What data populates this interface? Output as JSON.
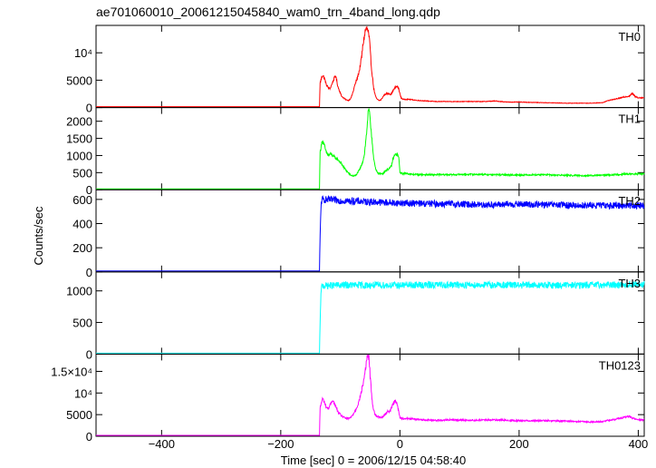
{
  "chart_data": {
    "type": "line",
    "title": "ae701060010_20061215045840_wam0_trn_4band_long.qdp",
    "xlabel": "Time [sec] 0 = 2006/12/15 04:58:40",
    "ylabel": "Counts/sec",
    "xlim": [
      -510,
      410
    ],
    "x_ticks": [
      -400,
      -200,
      0,
      200,
      400
    ],
    "x_tick_labels": [
      "−400",
      "−200",
      "0",
      "200",
      "400"
    ],
    "grid": false,
    "panels": [
      {
        "name": "TH0",
        "color": "#ff0000",
        "ylim": [
          0,
          15000
        ],
        "y_ticks": [
          0,
          5000,
          10000
        ],
        "y_tick_labels": [
          "0",
          "5000",
          "10⁴"
        ],
        "series": {
          "x": [
            -510,
            -135,
            -134,
            -130,
            -127,
            -124,
            -120,
            -117,
            -113,
            -108,
            -104,
            -98,
            -94,
            -90,
            -86,
            -84,
            -82,
            -80,
            -78,
            -76,
            -72,
            -68,
            -66,
            -64,
            -62,
            -60,
            -58,
            -56,
            -54,
            -53,
            -52,
            -51,
            -50,
            -49,
            -48,
            -46,
            -44,
            -42,
            -40,
            -38,
            -35,
            -32,
            -30,
            -27,
            -24,
            -22,
            -20,
            -18,
            -16,
            -14,
            -12,
            -9,
            -5,
            -2,
            0,
            2,
            5,
            8,
            15,
            30,
            60,
            100,
            140,
            160,
            180,
            200,
            240,
            280,
            320,
            340,
            350,
            360,
            375,
            385,
            390,
            395,
            400
          ],
          "y": [
            0,
            0,
            4500,
            5900,
            5500,
            4300,
            3600,
            3500,
            4600,
            5900,
            3800,
            2100,
            1700,
            1400,
            1300,
            1500,
            1800,
            2400,
            3100,
            4000,
            5200,
            6800,
            8000,
            9500,
            11500,
            12800,
            14000,
            14500,
            14000,
            13800,
            12800,
            12200,
            10500,
            9000,
            7500,
            5500,
            3500,
            2500,
            1800,
            1500,
            1300,
            1400,
            1700,
            2200,
            2500,
            2600,
            2500,
            2600,
            2400,
            2500,
            3000,
            3500,
            3900,
            3500,
            2500,
            1800,
            1500,
            1500,
            1500,
            1300,
            1100,
            1100,
            1100,
            1200,
            1000,
            1000,
            900,
            800,
            800,
            900,
            1300,
            1500,
            1900,
            2100,
            2600,
            2000,
            1800
          ]
        }
      },
      {
        "name": "TH1",
        "color": "#00ff00",
        "ylim": [
          0,
          2400
        ],
        "y_ticks": [
          0,
          500,
          1000,
          1500,
          2000
        ],
        "y_tick_labels": [
          "0",
          "500",
          "1000",
          "1500",
          "2000"
        ],
        "series": {
          "x": [
            -510,
            -135,
            -134,
            -130,
            -127,
            -124,
            -120,
            -116,
            -110,
            -104,
            -98,
            -94,
            -90,
            -86,
            -82,
            -78,
            -74,
            -70,
            -66,
            -62,
            -60,
            -58,
            -56,
            -54,
            -53,
            -52,
            -51,
            -50,
            -48,
            -46,
            -44,
            -42,
            -40,
            -36,
            -32,
            -28,
            -24,
            -20,
            -18,
            -16,
            -14,
            -12,
            -9,
            -5,
            -2,
            0,
            5,
            10,
            20,
            40,
            80,
            120,
            160,
            200,
            240,
            280,
            320,
            360,
            380,
            400
          ],
          "y": [
            0,
            0,
            1100,
            1450,
            1300,
            1100,
            1000,
            1050,
            950,
            880,
            760,
            650,
            560,
            480,
            420,
            400,
            420,
            520,
            650,
            850,
            1000,
            1300,
            1650,
            2100,
            2280,
            2400,
            2200,
            2000,
            1700,
            1300,
            900,
            700,
            560,
            480,
            460,
            480,
            560,
            600,
            620,
            640,
            720,
            880,
            1000,
            1050,
            950,
            500,
            470,
            480,
            450,
            440,
            440,
            450,
            440,
            430,
            440,
            420,
            410,
            440,
            460,
            460
          ]
        }
      },
      {
        "name": "TH2",
        "color": "#0000ff",
        "ylim": [
          0,
          680
        ],
        "y_ticks": [
          0,
          200,
          400,
          600
        ],
        "y_tick_labels": [
          "0",
          "200",
          "400",
          "600"
        ],
        "series": {
          "x": [
            -510,
            -135,
            -134,
            -132,
            -130,
            -100,
            -50,
            0,
            50,
            100,
            150,
            200,
            250,
            300,
            350,
            400
          ],
          "y": [
            0,
            0,
            300,
            580,
            600,
            590,
            580,
            570,
            565,
            560,
            555,
            560,
            555,
            550,
            550,
            550
          ]
        }
      },
      {
        "name": "TH3",
        "color": "#00ffff",
        "ylim": [
          0,
          1300
        ],
        "y_ticks": [
          0,
          500,
          1000
        ],
        "y_tick_labels": [
          "0",
          "500",
          "1000"
        ],
        "series": {
          "x": [
            -510,
            -135,
            -134,
            -132,
            -130,
            -100,
            -50,
            0,
            50,
            100,
            150,
            200,
            250,
            300,
            350,
            400
          ],
          "y": [
            0,
            0,
            500,
            1050,
            1080,
            1090,
            1090,
            1090,
            1095,
            1095,
            1095,
            1090,
            1090,
            1090,
            1095,
            1100
          ]
        }
      },
      {
        "name": "TH0123",
        "color": "#ff00ff",
        "ylim": [
          0,
          19000
        ],
        "y_ticks": [
          0,
          5000,
          10000,
          15000
        ],
        "y_tick_labels": [
          "0",
          "5000",
          "10⁴",
          "1.5×10⁴"
        ],
        "series": {
          "x": [
            -510,
            -135,
            -134,
            -130,
            -127,
            -124,
            -120,
            -117,
            -113,
            -108,
            -104,
            -98,
            -94,
            -90,
            -86,
            -82,
            -78,
            -74,
            -70,
            -66,
            -62,
            -60,
            -58,
            -56,
            -54,
            -53,
            -52,
            -51,
            -50,
            -48,
            -46,
            -44,
            -42,
            -40,
            -36,
            -32,
            -28,
            -24,
            -20,
            -16,
            -14,
            -12,
            -9,
            -5,
            -2,
            0,
            2,
            5,
            10,
            20,
            40,
            60,
            80,
            120,
            160,
            180,
            200,
            240,
            280,
            320,
            340,
            350,
            360,
            375,
            385,
            390,
            395,
            400
          ],
          "y": [
            0,
            0,
            6500,
            8700,
            8000,
            6800,
            6400,
            7200,
            8400,
            7000,
            5600,
            4700,
            4400,
            4100,
            4100,
            4400,
            5200,
            6200,
            7500,
            9500,
            12000,
            13500,
            15500,
            17500,
            18500,
            18800,
            18000,
            16500,
            14000,
            10500,
            7500,
            6000,
            5200,
            4700,
            4500,
            4400,
            4600,
            5200,
            5800,
            5900,
            6600,
            7300,
            8200,
            7800,
            5600,
            4300,
            4200,
            4100,
            4100,
            4000,
            3800,
            3700,
            3800,
            3700,
            3800,
            3700,
            3600,
            3600,
            3500,
            3300,
            3400,
            3700,
            3900,
            4300,
            4600,
            4200,
            4000,
            3800
          ]
        }
      }
    ]
  }
}
